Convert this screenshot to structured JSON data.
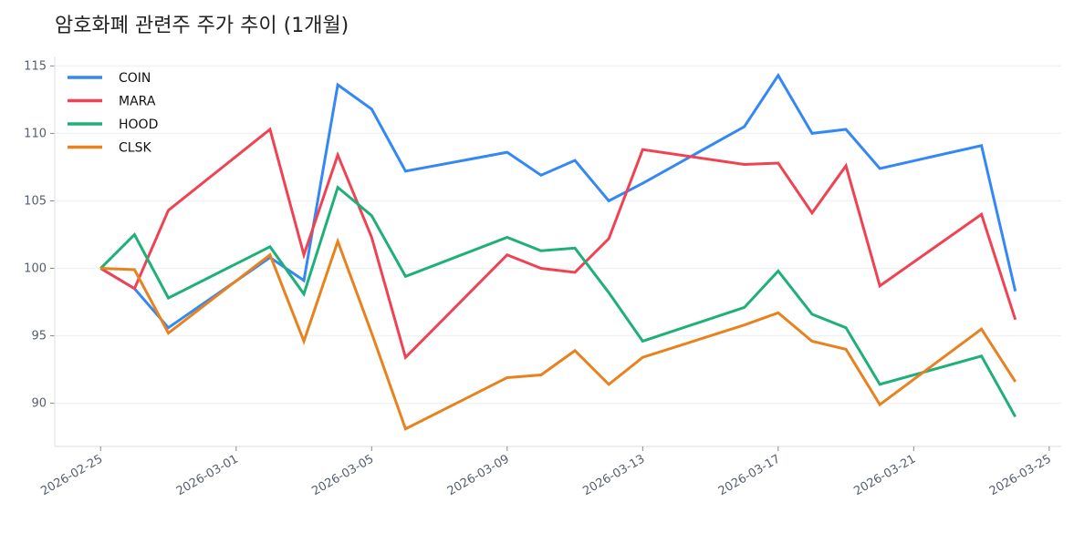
{
  "chart_data": {
    "type": "line",
    "title": "암호화폐 관련주 주가 추이 (1개월)",
    "xlabel": "",
    "ylabel": "",
    "x": [
      "2026-02-25",
      "2026-02-26",
      "2026-02-27",
      "2026-03-02",
      "2026-03-03",
      "2026-03-04",
      "2026-03-05",
      "2026-03-06",
      "2026-03-09",
      "2026-03-10",
      "2026-03-11",
      "2026-03-12",
      "2026-03-13",
      "2026-03-16",
      "2026-03-17",
      "2026-03-18",
      "2026-03-19",
      "2026-03-20",
      "2026-03-23",
      "2026-03-24"
    ],
    "series": [
      {
        "name": "COIN",
        "color": "#3388f5",
        "values": [
          100,
          98.5,
          95.6,
          100.8,
          99.1,
          113.6,
          111.8,
          107.2,
          108.6,
          106.9,
          108.0,
          105.0,
          106.3,
          110.5,
          114.3,
          110.0,
          110.3,
          107.4,
          109.1,
          98.3
        ]
      },
      {
        "name": "MARA",
        "color": "#ef4354",
        "values": [
          100,
          98.5,
          104.3,
          110.3,
          101.0,
          108.4,
          102.3,
          93.4,
          101.0,
          100.0,
          99.7,
          102.2,
          108.8,
          107.7,
          107.8,
          104.1,
          107.6,
          98.7,
          104.0,
          96.2
        ]
      },
      {
        "name": "HOOD",
        "color": "#1eb078",
        "values": [
          100,
          102.5,
          97.8,
          101.6,
          98.1,
          106.0,
          103.9,
          99.4,
          102.3,
          101.3,
          101.5,
          98.2,
          94.6,
          97.1,
          99.8,
          96.6,
          95.6,
          91.4,
          93.5,
          89.0
        ]
      },
      {
        "name": "CLSK",
        "color": "#e8821e",
        "values": [
          100,
          99.9,
          95.2,
          101.0,
          94.6,
          102.0,
          95.2,
          88.1,
          91.9,
          92.1,
          93.9,
          91.4,
          93.4,
          95.8,
          96.7,
          94.6,
          94.0,
          89.9,
          95.5,
          91.6
        ]
      }
    ],
    "xticks": [
      "2026-02-25",
      "2026-03-01",
      "2026-03-05",
      "2026-03-09",
      "2026-03-13",
      "2026-03-17",
      "2026-03-21",
      "2026-03-25"
    ],
    "yticks": [
      90,
      95,
      100,
      105,
      110,
      115
    ],
    "xlim": [
      "2026-02-23T15:30",
      "2026-03-25T08:30"
    ],
    "ylim": [
      86.8,
      115.7
    ],
    "grid": "horizontal",
    "legend": "top-left"
  }
}
